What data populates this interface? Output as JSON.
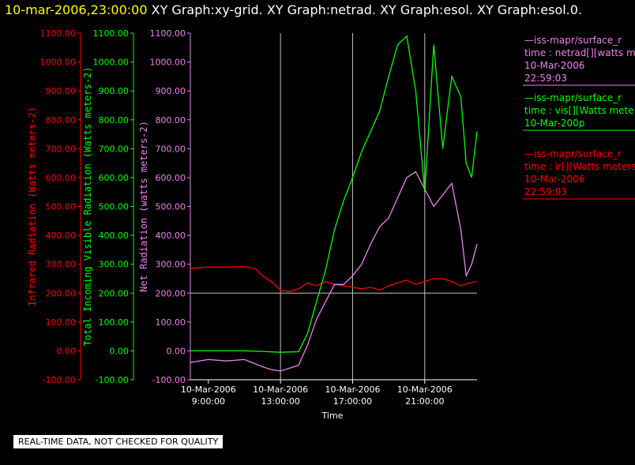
{
  "header": {
    "timestamp": "10-mar-2006,23:00:00",
    "graphs": "XY Graph:xy-grid.  XY Graph:netrad.  XY Graph:esol.  XY Graph:esol.0."
  },
  "notice": "REAL-TIME DATA, NOT CHECKED FOR QUALITY",
  "colors": {
    "ir": "#ff0000",
    "vis": "#00ff00",
    "net": "#ee82ee",
    "grid": "#c0c0c0"
  },
  "chart_data": {
    "type": "line",
    "xlabel": "Time",
    "x_ticks": [
      {
        "line1": "10-Mar-2006",
        "line2": "9:00:00",
        "hour": 9
      },
      {
        "line1": "10-Mar-2006",
        "line2": "13:00:00",
        "hour": 13
      },
      {
        "line1": "10-Mar-2006",
        "line2": "17:00:00",
        "hour": 17
      },
      {
        "line1": "10-Mar-2006",
        "line2": "21:00:00",
        "hour": 21
      }
    ],
    "xlim_hours": [
      8,
      23.9
    ],
    "ylim": [
      -100,
      1100
    ],
    "y_ticks": [
      "-100.00",
      "0.00",
      "100.00",
      "200.00",
      "300.00",
      "400.00",
      "500.00",
      "600.00",
      "700.00",
      "800.00",
      "900.00",
      "1000.00",
      "1100.00"
    ],
    "axes": [
      {
        "key": "ir",
        "label": "Infrared Radiation (Watts meters-2)"
      },
      {
        "key": "vis",
        "label": "Total Incoming Visible Radiation (Watts meters-2)"
      },
      {
        "key": "net",
        "label": "Net Radiation (watts meters-2)"
      }
    ],
    "series": [
      {
        "key": "ir",
        "hours": [
          8.0,
          9.0,
          10.0,
          11.0,
          11.6,
          12.0,
          12.6,
          13.0,
          13.5,
          14.0,
          14.5,
          15.0,
          15.5,
          16.0,
          16.5,
          17.0,
          17.5,
          18.0,
          18.5,
          19.0,
          19.5,
          20.0,
          20.5,
          21.0,
          21.5,
          22.0,
          22.5,
          23.0,
          23.5,
          23.9
        ],
        "values": [
          285,
          290,
          290,
          292,
          285,
          260,
          235,
          210,
          205,
          215,
          235,
          225,
          240,
          230,
          225,
          220,
          215,
          220,
          210,
          225,
          235,
          245,
          230,
          240,
          250,
          250,
          240,
          225,
          235,
          240
        ]
      },
      {
        "key": "vis",
        "hours": [
          8.0,
          9.0,
          10.0,
          11.0,
          12.0,
          13.0,
          14.0,
          14.5,
          15.0,
          15.5,
          16.0,
          16.5,
          17.0,
          17.5,
          18.0,
          18.5,
          19.0,
          19.5,
          20.0,
          20.5,
          21.0,
          21.5,
          22.0,
          22.5,
          23.0,
          23.3,
          23.6,
          23.9
        ],
        "values": [
          0,
          0,
          0,
          0,
          -2,
          -5,
          -3,
          60,
          170,
          280,
          420,
          520,
          600,
          690,
          760,
          830,
          950,
          1060,
          1090,
          900,
          550,
          1060,
          700,
          950,
          880,
          650,
          600,
          760
        ]
      },
      {
        "key": "net",
        "hours": [
          8.0,
          9.0,
          10.0,
          11.0,
          12.0,
          12.5,
          13.0,
          13.5,
          14.0,
          14.5,
          15.0,
          15.5,
          16.0,
          16.5,
          17.0,
          17.5,
          18.0,
          18.5,
          19.0,
          19.5,
          20.0,
          20.5,
          21.0,
          21.5,
          22.0,
          22.5,
          23.0,
          23.3,
          23.6,
          23.9
        ],
        "values": [
          -40,
          -30,
          -35,
          -30,
          -55,
          -65,
          -70,
          -60,
          -50,
          20,
          110,
          170,
          230,
          230,
          260,
          300,
          370,
          430,
          460,
          530,
          600,
          620,
          560,
          500,
          540,
          580,
          420,
          260,
          300,
          370
        ]
      }
    ]
  },
  "legend": [
    {
      "key": "net",
      "lines": [
        "—iss-mapr/surface_r",
        "time : netrad[][watts m",
        "10-Mar-2006",
        "22:59:03"
      ]
    },
    {
      "key": "vis",
      "lines": [
        "—iss-mapr/surface_r",
        "time : vis[][Watts mete",
        "10-Mar-200p"
      ]
    },
    {
      "key": "ir",
      "lines": [
        "—iss-mapr/surface_r",
        "time : ir[][Watts meters",
        "10-Mar-2006",
        "22:59:03"
      ]
    }
  ]
}
